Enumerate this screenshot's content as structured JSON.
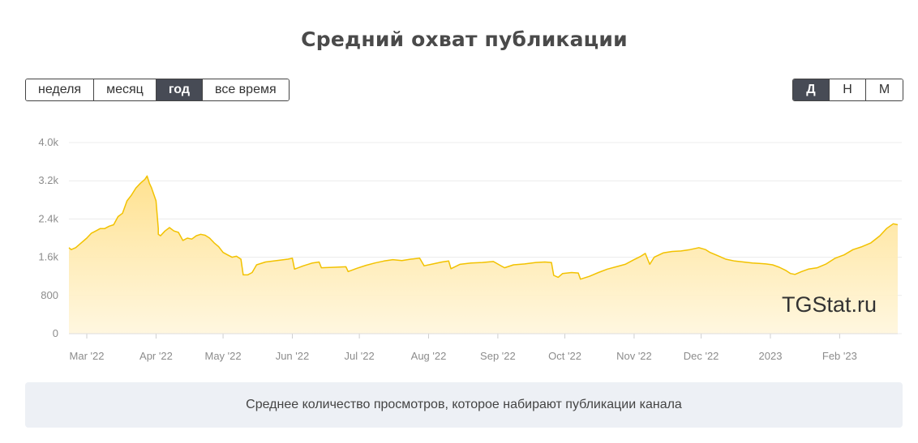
{
  "title": "Средний охват публикации",
  "period_buttons": [
    {
      "label": "неделя",
      "active": false
    },
    {
      "label": "месяц",
      "active": false
    },
    {
      "label": "год",
      "active": true
    },
    {
      "label": "все время",
      "active": false
    }
  ],
  "granularity_buttons": [
    {
      "label": "Д",
      "active": true
    },
    {
      "label": "Н",
      "active": false
    },
    {
      "label": "М",
      "active": false
    }
  ],
  "watermark": "TGStat.ru",
  "description": "Среднее количество просмотров, которое набирают публикации канала",
  "colors": {
    "line": "#f2c200",
    "fill_top": "#ffe08a",
    "fill_bottom": "#fff6dc",
    "grid": "#ececec",
    "active_button": "#474b55"
  },
  "chart_data": {
    "type": "area",
    "title": "Средний охват публикации",
    "xlabel": "",
    "ylabel": "",
    "x_start": "2022-02-21",
    "x_end": "2023-02-27",
    "ylim": [
      0,
      4000
    ],
    "y_ticks": [
      0,
      800,
      1600,
      2400,
      3200,
      4000
    ],
    "y_tick_labels": [
      "0",
      "800",
      "1.6k",
      "2.4k",
      "3.2k",
      "4.0k"
    ],
    "x_ticks": [
      {
        "date": "2022-03-01",
        "label": "Mar '22"
      },
      {
        "date": "2022-04-01",
        "label": "Apr '22"
      },
      {
        "date": "2022-05-01",
        "label": "May '22"
      },
      {
        "date": "2022-06-01",
        "label": "Jun '22"
      },
      {
        "date": "2022-07-01",
        "label": "Jul '22"
      },
      {
        "date": "2022-08-01",
        "label": "Aug '22"
      },
      {
        "date": "2022-09-01",
        "label": "Sep '22"
      },
      {
        "date": "2022-10-01",
        "label": "Oct '22"
      },
      {
        "date": "2022-11-01",
        "label": "Nov '22"
      },
      {
        "date": "2022-12-01",
        "label": "Dec '22"
      },
      {
        "date": "2023-01-01",
        "label": "2023"
      },
      {
        "date": "2023-02-01",
        "label": "Feb '23"
      }
    ],
    "grid": true,
    "legend": "none",
    "series": [
      {
        "points": [
          [
            "2022-02-21",
            1800
          ],
          [
            "2022-02-22",
            1760
          ],
          [
            "2022-02-24",
            1800
          ],
          [
            "2022-02-26",
            1880
          ],
          [
            "2022-03-01",
            2000
          ],
          [
            "2022-03-03",
            2100
          ],
          [
            "2022-03-05",
            2150
          ],
          [
            "2022-03-07",
            2200
          ],
          [
            "2022-03-09",
            2200
          ],
          [
            "2022-03-11",
            2250
          ],
          [
            "2022-03-13",
            2280
          ],
          [
            "2022-03-15",
            2450
          ],
          [
            "2022-03-17",
            2520
          ],
          [
            "2022-03-19",
            2780
          ],
          [
            "2022-03-21",
            2900
          ],
          [
            "2022-03-23",
            3050
          ],
          [
            "2022-03-25",
            3150
          ],
          [
            "2022-03-27",
            3230
          ],
          [
            "2022-03-28",
            3300
          ],
          [
            "2022-03-29",
            3150
          ],
          [
            "2022-03-30",
            3050
          ],
          [
            "2022-04-01",
            2780
          ],
          [
            "2022-04:02",
            2200
          ],
          [
            "2022-04-02",
            2080
          ],
          [
            "2022-04-03",
            2050
          ],
          [
            "2022-04-05",
            2150
          ],
          [
            "2022-04-07",
            2220
          ],
          [
            "2022-04-09",
            2150
          ],
          [
            "2022-04-11",
            2120
          ],
          [
            "2022-04-13",
            1950
          ],
          [
            "2022-04-15",
            2000
          ],
          [
            "2022-04-17",
            1980
          ],
          [
            "2022-04-19",
            2050
          ],
          [
            "2022-04-21",
            2080
          ],
          [
            "2022-04-23",
            2060
          ],
          [
            "2022-04-25",
            2000
          ],
          [
            "2022-04-27",
            1900
          ],
          [
            "2022-04-29",
            1820
          ],
          [
            "2022-05-01",
            1700
          ],
          [
            "2022-05-03",
            1650
          ],
          [
            "2022-05-05",
            1600
          ],
          [
            "2022-05-07",
            1620
          ],
          [
            "2022-05-09",
            1560
          ],
          [
            "2022-05-10",
            1230
          ],
          [
            "2022-05-12",
            1230
          ],
          [
            "2022-05-14",
            1280
          ],
          [
            "2022-05-16",
            1440
          ],
          [
            "2022-05-20",
            1500
          ],
          [
            "2022-05-25",
            1530
          ],
          [
            "2022-05-30",
            1560
          ],
          [
            "2022-06-01",
            1580
          ],
          [
            "2022-06-02",
            1350
          ],
          [
            "2022-06-06",
            1420
          ],
          [
            "2022-06-10",
            1480
          ],
          [
            "2022-06-13",
            1500
          ],
          [
            "2022-06-14",
            1380
          ],
          [
            "2022-06-20",
            1390
          ],
          [
            "2022-06-25",
            1400
          ],
          [
            "2022-06-26",
            1300
          ],
          [
            "2022-06-30",
            1370
          ],
          [
            "2022-07-04",
            1430
          ],
          [
            "2022-07-08",
            1480
          ],
          [
            "2022-07-12",
            1520
          ],
          [
            "2022-07-16",
            1550
          ],
          [
            "2022-07-20",
            1530
          ],
          [
            "2022-07-24",
            1560
          ],
          [
            "2022-07-28",
            1580
          ],
          [
            "2022-07-30",
            1420
          ],
          [
            "2022-08-03",
            1460
          ],
          [
            "2022-08-07",
            1500
          ],
          [
            "2022-08-10",
            1520
          ],
          [
            "2022-08-11",
            1360
          ],
          [
            "2022-08-15",
            1450
          ],
          [
            "2022-08-20",
            1480
          ],
          [
            "2022-08-25",
            1490
          ],
          [
            "2022-08-30",
            1510
          ],
          [
            "2022-09-02",
            1430
          ],
          [
            "2022-09-04",
            1380
          ],
          [
            "2022-09-08",
            1440
          ],
          [
            "2022-09-13",
            1460
          ],
          [
            "2022-09-18",
            1490
          ],
          [
            "2022-09-22",
            1500
          ],
          [
            "2022-09-25",
            1490
          ],
          [
            "2022-09-26",
            1220
          ],
          [
            "2022-09-28",
            1180
          ],
          [
            "2022-09-30",
            1260
          ],
          [
            "2022-10-04",
            1280
          ],
          [
            "2022-10-07",
            1270
          ],
          [
            "2022-10-08",
            1140
          ],
          [
            "2022-10-12",
            1200
          ],
          [
            "2022-10-16",
            1280
          ],
          [
            "2022-10-20",
            1350
          ],
          [
            "2022-10-24",
            1400
          ],
          [
            "2022-10-28",
            1450
          ],
          [
            "2022-11-01",
            1550
          ],
          [
            "2022-11-04",
            1620
          ],
          [
            "2022-11-06",
            1680
          ],
          [
            "2022-11-08",
            1450
          ],
          [
            "2022-11-10",
            1600
          ],
          [
            "2022-11-14",
            1690
          ],
          [
            "2022-11-18",
            1720
          ],
          [
            "2022-11-22",
            1730
          ],
          [
            "2022-11-26",
            1760
          ],
          [
            "2022-11-30",
            1800
          ],
          [
            "2022-12-03",
            1760
          ],
          [
            "2022-12-05",
            1700
          ],
          [
            "2022-12-08",
            1640
          ],
          [
            "2022-12-12",
            1560
          ],
          [
            "2022-12-16",
            1520
          ],
          [
            "2022-12-20",
            1500
          ],
          [
            "2022-12-24",
            1480
          ],
          [
            "2022-12-27",
            1470
          ],
          [
            "2022-12-30",
            1460
          ],
          [
            "2023-01-02",
            1440
          ],
          [
            "2023-01-05",
            1390
          ],
          [
            "2023-01-08",
            1320
          ],
          [
            "2023-01-10",
            1260
          ],
          [
            "2023-01-12",
            1240
          ],
          [
            "2023-01-15",
            1300
          ],
          [
            "2023-01-18",
            1350
          ],
          [
            "2023-01-22",
            1380
          ],
          [
            "2023-01-26",
            1460
          ],
          [
            "2023-01-30",
            1580
          ],
          [
            "2023-02-03",
            1650
          ],
          [
            "2023-02-07",
            1760
          ],
          [
            "2023-02-11",
            1820
          ],
          [
            "2023-02-15",
            1900
          ],
          [
            "2023-02-19",
            2050
          ],
          [
            "2023-02-22",
            2200
          ],
          [
            "2023-02-25",
            2300
          ],
          [
            "2023-02-27",
            2280
          ]
        ]
      }
    ]
  }
}
